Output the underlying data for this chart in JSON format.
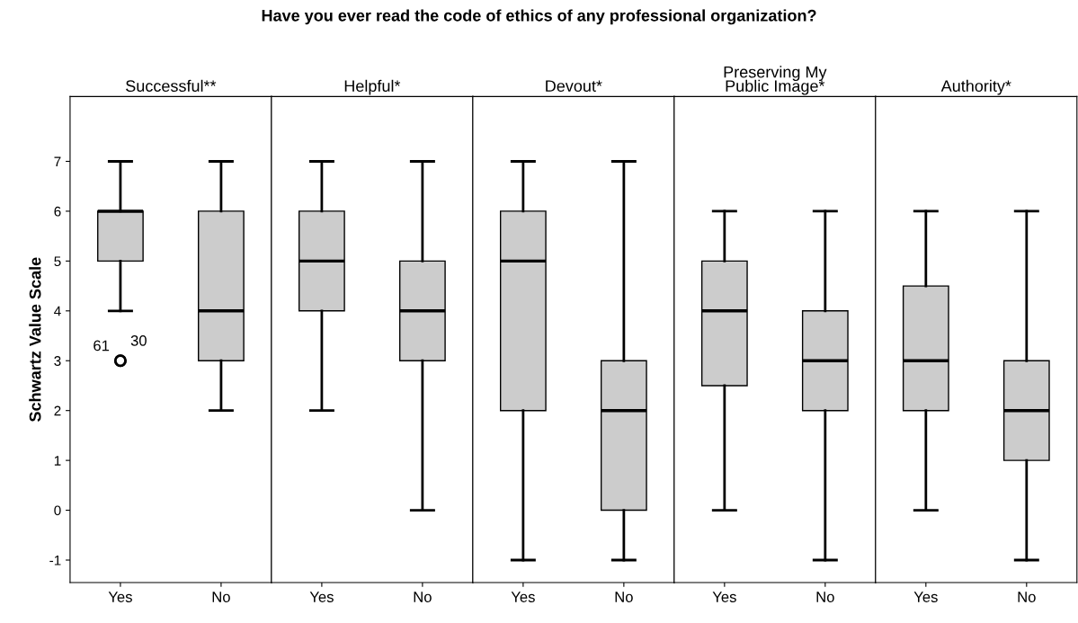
{
  "chart_data": [
    {
      "type": "box",
      "title": "Successful**",
      "ylabel": "Schwartz Value Scale",
      "categories": [
        "Yes",
        "No"
      ],
      "color": "#cccccc",
      "ylim": [
        -1.45,
        8.3
      ],
      "yticks": [
        -1,
        0,
        1,
        2,
        3,
        4,
        5,
        6,
        7
      ],
      "grid": false,
      "tick_labels": null,
      "boxes": [
        {
          "low": 4,
          "q1": 5,
          "median": 6,
          "q3": 6,
          "high": 7,
          "outliers": [
            3,
            3
          ]
        },
        {
          "low": 2,
          "q1": 3,
          "median": 4,
          "q3": 6,
          "high": 7
        }
      ],
      "annotations": [
        "Have you ever read the code of ethics of any professional organization?",
        "61",
        "30"
      ]
    },
    {
      "type": "box",
      "title": "Helpful*",
      "categories": [
        "Yes",
        "No"
      ],
      "color": "#cccccc",
      "ylim": [
        -1.45,
        8.3
      ],
      "yticks": [
        -1,
        0,
        1,
        2,
        3,
        4,
        5,
        6,
        7
      ],
      "grid": false,
      "tick_labels": "x",
      "boxes": [
        {
          "low": 2,
          "q1": 4,
          "median": 5,
          "q3": 6,
          "high": 7
        },
        {
          "low": 0,
          "q1": 3,
          "median": 4,
          "q3": 5,
          "high": 7
        }
      ]
    },
    {
      "type": "box",
      "title": "Devout*",
      "categories": [
        "Yes",
        "No"
      ],
      "color": "#cccccc",
      "ylim": [
        -1.45,
        8.3
      ],
      "yticks": [
        -1,
        0,
        1,
        2,
        3,
        4,
        5,
        6,
        7
      ],
      "grid": false,
      "tick_labels": "x",
      "boxes": [
        {
          "low": -1,
          "q1": 2,
          "median": 5,
          "q3": 6,
          "high": 7
        },
        {
          "low": -1,
          "q1": 0,
          "median": 2,
          "q3": 3,
          "high": 7
        }
      ]
    },
    {
      "type": "box",
      "title": "Preserving My\nPublic Image*",
      "categories": [
        "Yes",
        "No"
      ],
      "color": "#cccccc",
      "ylim": [
        -1.45,
        8.3
      ],
      "yticks": [
        -1,
        0,
        1,
        2,
        3,
        4,
        5,
        6,
        7
      ],
      "grid": false,
      "tick_labels": "x",
      "boxes": [
        {
          "low": 0,
          "q1": 2.5,
          "median": 4,
          "q3": 5,
          "high": 6
        },
        {
          "low": -1,
          "q1": 2,
          "median": 3,
          "q3": 4,
          "high": 6
        }
      ]
    },
    {
      "type": "box",
      "title": "Authority*",
      "categories": [
        "Yes",
        "No"
      ],
      "color": "#cccccc",
      "ylim": [
        -1.45,
        8.3
      ],
      "yticks": [
        -1,
        0,
        1,
        2,
        3,
        4,
        5,
        6,
        7
      ],
      "grid": false,
      "tick_labels": "x",
      "boxes": [
        {
          "low": 0,
          "q1": 2,
          "median": 3,
          "q3": 4.5,
          "high": 6
        },
        {
          "low": -1,
          "q1": 1,
          "median": 2,
          "q3": 3,
          "high": 6
        }
      ]
    }
  ]
}
